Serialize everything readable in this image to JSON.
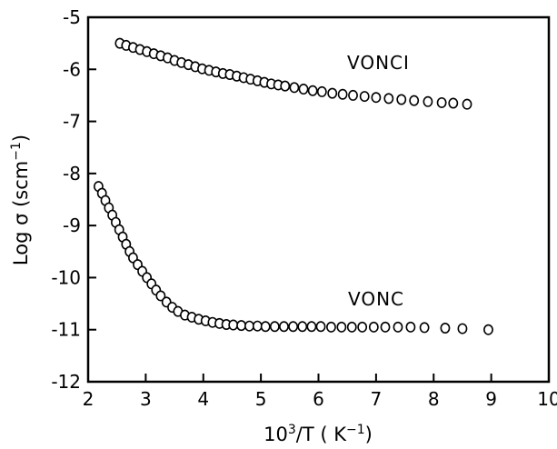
{
  "chart_data": {
    "type": "scatter",
    "xlabel_base": "10",
    "xlabel_sup": "3",
    "xlabel_mid": "/T ( K",
    "xlabel_unit_sup": "−1",
    "xlabel_end": ")",
    "ylabel_base": "Log σ (scm",
    "ylabel_sup": "−1",
    "ylabel_end": ")",
    "xlim": [
      2,
      10
    ],
    "ylim": [
      -12,
      -5
    ],
    "xticks": [
      2,
      3,
      4,
      5,
      6,
      7,
      8,
      9,
      10
    ],
    "yticks": [
      -5,
      -6,
      -7,
      -8,
      -9,
      -10,
      -11,
      -12
    ],
    "grid": false,
    "series": [
      {
        "name": "VONCI",
        "x": [
          2.55,
          2.66,
          2.78,
          2.9,
          3.02,
          3.14,
          3.26,
          3.38,
          3.5,
          3.62,
          3.74,
          3.86,
          3.98,
          4.1,
          4.22,
          4.34,
          4.46,
          4.58,
          4.7,
          4.82,
          4.94,
          5.06,
          5.18,
          5.3,
          5.42,
          5.58,
          5.74,
          5.9,
          6.06,
          6.24,
          6.42,
          6.6,
          6.8,
          7.0,
          7.22,
          7.44,
          7.66,
          7.9,
          8.14,
          8.34,
          8.58
        ],
        "y": [
          -5.5,
          -5.54,
          -5.58,
          -5.62,
          -5.66,
          -5.7,
          -5.74,
          -5.78,
          -5.83,
          -5.87,
          -5.91,
          -5.95,
          -5.99,
          -6.02,
          -6.05,
          -6.08,
          -6.1,
          -6.13,
          -6.16,
          -6.19,
          -6.22,
          -6.25,
          -6.28,
          -6.3,
          -6.32,
          -6.35,
          -6.38,
          -6.41,
          -6.43,
          -6.46,
          -6.48,
          -6.5,
          -6.52,
          -6.54,
          -6.56,
          -6.58,
          -6.6,
          -6.62,
          -6.64,
          -6.65,
          -6.67
        ]
      },
      {
        "name": "VONC",
        "x": [
          2.18,
          2.24,
          2.3,
          2.36,
          2.42,
          2.48,
          2.54,
          2.6,
          2.66,
          2.72,
          2.78,
          2.86,
          2.94,
          3.02,
          3.1,
          3.18,
          3.26,
          3.36,
          3.46,
          3.56,
          3.68,
          3.8,
          3.92,
          4.04,
          4.16,
          4.28,
          4.4,
          4.52,
          4.66,
          4.8,
          4.94,
          5.08,
          5.24,
          5.4,
          5.56,
          5.72,
          5.88,
          6.04,
          6.22,
          6.4,
          6.58,
          6.76,
          6.96,
          7.16,
          7.38,
          7.6,
          7.84,
          8.2,
          8.5,
          8.95
        ],
        "y": [
          -8.25,
          -8.38,
          -8.52,
          -8.66,
          -8.8,
          -8.94,
          -9.08,
          -9.22,
          -9.36,
          -9.5,
          -9.62,
          -9.75,
          -9.88,
          -10.0,
          -10.12,
          -10.24,
          -10.35,
          -10.47,
          -10.57,
          -10.65,
          -10.72,
          -10.76,
          -10.8,
          -10.83,
          -10.86,
          -10.88,
          -10.9,
          -10.91,
          -10.92,
          -10.93,
          -10.93,
          -10.94,
          -10.94,
          -10.94,
          -10.94,
          -10.94,
          -10.94,
          -10.94,
          -10.95,
          -10.95,
          -10.95,
          -10.95,
          -10.95,
          -10.95,
          -10.95,
          -10.95,
          -10.96,
          -10.97,
          -10.98,
          -11.0
        ]
      }
    ]
  }
}
